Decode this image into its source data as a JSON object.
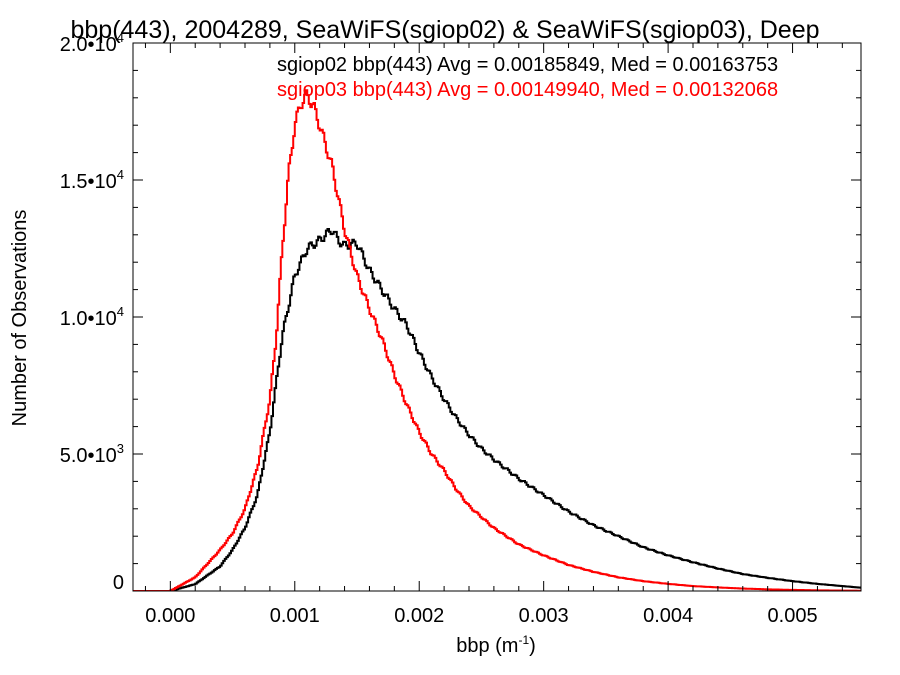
{
  "chart_data": {
    "type": "line",
    "title": "bbp(443), 2004289, SeaWiFS(sgiop02) & SeaWiFS(sgiop03), Deep",
    "xlabel": "bbp (m",
    "xlabel_sup": "-1",
    "xlabel_end": ")",
    "ylabel": "Number of Observations",
    "xlim": [
      -0.0003,
      0.00555
    ],
    "ylim": [
      0,
      20000
    ],
    "x_ticks": [
      {
        "value": 0.0,
        "label": "0.000"
      },
      {
        "value": 0.001,
        "label": "0.001"
      },
      {
        "value": 0.002,
        "label": "0.002"
      },
      {
        "value": 0.003,
        "label": "0.003"
      },
      {
        "value": 0.004,
        "label": "0.004"
      },
      {
        "value": 0.005,
        "label": "0.005"
      }
    ],
    "y_ticks": [
      {
        "value": 0,
        "mant": "0",
        "exp": ""
      },
      {
        "value": 5000,
        "mant": "5.0•10",
        "exp": "3"
      },
      {
        "value": 10000,
        "mant": "1.0•10",
        "exp": "4"
      },
      {
        "value": 15000,
        "mant": "1.5•10",
        "exp": "4"
      },
      {
        "value": 20000,
        "mant": "2.0•10",
        "exp": "4"
      }
    ],
    "grid": false,
    "legend_position": "top-right",
    "series": [
      {
        "name": "sgiop02 bbp(443) Avg = 0.00185849, Med = 0.00163753",
        "color": "#000000",
        "x": [
          -0.0003,
          0.0,
          0.0002,
          0.0004,
          0.0005,
          0.0006,
          0.0007,
          0.0008,
          0.0009,
          0.001,
          0.0011,
          0.0012,
          0.0013,
          0.00135,
          0.0014,
          0.0015,
          0.0016,
          0.0017,
          0.0018,
          0.0019,
          0.002,
          0.0021,
          0.0022,
          0.0023,
          0.0024,
          0.0025,
          0.0026,
          0.0028,
          0.003,
          0.0032,
          0.0034,
          0.0036,
          0.0038,
          0.004,
          0.0042,
          0.0044,
          0.0046,
          0.0048,
          0.005,
          0.0052,
          0.0054,
          0.00555
        ],
        "y": [
          0,
          0,
          250,
          900,
          1500,
          2300,
          3500,
          5800,
          9300,
          11500,
          12500,
          12800,
          13200,
          12800,
          12600,
          12700,
          11700,
          11000,
          10300,
          9700,
          8700,
          7800,
          7000,
          6300,
          5700,
          5200,
          4800,
          4100,
          3500,
          2900,
          2400,
          2000,
          1600,
          1300,
          1050,
          820,
          620,
          480,
          360,
          260,
          180,
          120
        ]
      },
      {
        "name": "sgiop03 bbp(443) Avg = 0.00149940, Med = 0.00132068",
        "color": "#ff0000",
        "x": [
          -0.0003,
          0.0,
          0.0002,
          0.0004,
          0.0005,
          0.0006,
          0.0007,
          0.0008,
          0.00085,
          0.0009,
          0.00095,
          0.001,
          0.00105,
          0.0011,
          0.00115,
          0.0012,
          0.0013,
          0.0014,
          0.0015,
          0.0016,
          0.0017,
          0.0018,
          0.0019,
          0.002,
          0.0021,
          0.0022,
          0.0023,
          0.0024,
          0.0025,
          0.0026,
          0.0028,
          0.003,
          0.0032,
          0.0034,
          0.0036,
          0.0038,
          0.004,
          0.0042,
          0.0044,
          0.0046,
          0.0048,
          0.005,
          0.0052,
          0.0054,
          0.00555
        ],
        "y": [
          0,
          0,
          500,
          1500,
          2100,
          3000,
          4500,
          7000,
          9200,
          12500,
          15200,
          17000,
          17800,
          18100,
          17700,
          17000,
          15500,
          13200,
          11500,
          10300,
          9200,
          7900,
          6800,
          5800,
          5000,
          4400,
          3700,
          3100,
          2700,
          2300,
          1700,
          1300,
          950,
          700,
          500,
          360,
          260,
          180,
          130,
          90,
          60,
          40,
          25,
          15,
          10
        ]
      }
    ]
  }
}
